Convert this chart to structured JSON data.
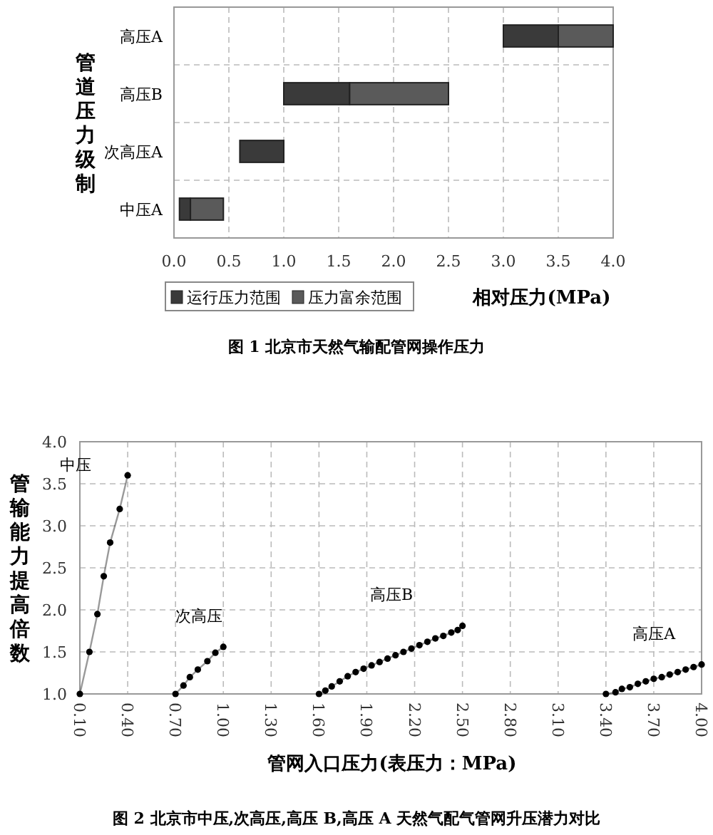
{
  "chart_data": [
    {
      "type": "bar",
      "orientation": "horizontal",
      "title": "图 1  北京市天然气输配管网操作压力",
      "xlabel": "相对压力(MPa)",
      "ylabel": "管道压力级制",
      "categories": [
        "高压A",
        "高压B",
        "次高压A",
        "中压A"
      ],
      "series": [
        {
          "name": "运行压力范围",
          "color": "#3a3a3a",
          "base": [
            3.0,
            1.0,
            0.6,
            0.05
          ],
          "values": [
            0.5,
            0.6,
            0.4,
            0.1
          ]
        },
        {
          "name": "压力富余范围",
          "color": "#5a5a5a",
          "base": [
            3.5,
            1.6,
            null,
            0.15
          ],
          "values": [
            0.5,
            0.9,
            null,
            0.3
          ]
        }
      ],
      "xlim": [
        0,
        4
      ],
      "xticks": [
        {
          "value": 0,
          "label": "0.0"
        },
        {
          "value": 0.5,
          "label": "0.5"
        },
        {
          "value": 1,
          "label": "1.0"
        },
        {
          "value": 1.5,
          "label": "1.5"
        },
        {
          "value": 2,
          "label": "2.0"
        },
        {
          "value": 2.5,
          "label": "2.5"
        },
        {
          "value": 3,
          "label": "3.0"
        },
        {
          "value": 3.5,
          "label": "3.5"
        },
        {
          "value": 4,
          "label": "4.0"
        }
      ],
      "grid": true,
      "legend": "bottom"
    },
    {
      "type": "line",
      "title": "图 2  北京市中压,次高压,高压 B,高压 A 天然气配气管网升压潜力对比",
      "xlabel": "管网入口压力(表压力：MPa)",
      "ylabel": "管输能力提高倍数",
      "series": [
        {
          "name": "中压",
          "color": "#000000",
          "x": [
            0.1,
            0.16,
            0.21,
            0.25,
            0.29,
            0.35,
            0.4
          ],
          "values": [
            1.0,
            1.5,
            1.95,
            2.4,
            2.8,
            3.2,
            3.6
          ]
        },
        {
          "name": "次高压",
          "color": "#000000",
          "x": [
            0.7,
            0.75,
            0.79,
            0.84,
            0.9,
            0.95,
            1.0
          ],
          "values": [
            1.0,
            1.1,
            1.2,
            1.29,
            1.39,
            1.49,
            1.56
          ]
        },
        {
          "name": "高压B",
          "color": "#000000",
          "x": [
            1.6,
            1.64,
            1.68,
            1.73,
            1.78,
            1.83,
            1.88,
            1.93,
            1.98,
            2.03,
            2.08,
            2.13,
            2.18,
            2.23,
            2.28,
            2.33,
            2.38,
            2.43,
            2.47,
            2.5
          ],
          "values": [
            1.0,
            1.04,
            1.09,
            1.15,
            1.21,
            1.26,
            1.3,
            1.34,
            1.38,
            1.42,
            1.46,
            1.5,
            1.54,
            1.58,
            1.62,
            1.66,
            1.69,
            1.73,
            1.76,
            1.81
          ]
        },
        {
          "name": "高压A",
          "color": "#000000",
          "x": [
            3.4,
            3.46,
            3.5,
            3.55,
            3.6,
            3.65,
            3.7,
            3.75,
            3.8,
            3.85,
            3.9,
            3.95,
            4.0
          ],
          "values": [
            1.0,
            1.02,
            1.06,
            1.08,
            1.12,
            1.15,
            1.18,
            1.2,
            1.23,
            1.26,
            1.29,
            1.32,
            1.35
          ]
        }
      ],
      "xlim": [
        0.1,
        4.0
      ],
      "xticks": [
        {
          "value": 0.1,
          "label": "0.10"
        },
        {
          "value": 0.4,
          "label": "0.40"
        },
        {
          "value": 0.7,
          "label": "0.70"
        },
        {
          "value": 1.0,
          "label": "1.00"
        },
        {
          "value": 1.3,
          "label": "1.30"
        },
        {
          "value": 1.6,
          "label": "1.60"
        },
        {
          "value": 1.9,
          "label": "1.90"
        },
        {
          "value": 2.2,
          "label": "2.20"
        },
        {
          "value": 2.5,
          "label": "2.50"
        },
        {
          "value": 2.8,
          "label": "2.80"
        },
        {
          "value": 3.1,
          "label": "3.10"
        },
        {
          "value": 3.4,
          "label": "3.40"
        },
        {
          "value": 3.7,
          "label": "3.70"
        },
        {
          "value": 4.0,
          "label": "4.00"
        }
      ],
      "ylim": [
        1,
        4
      ],
      "yticks": [
        {
          "value": 1,
          "label": "1.0"
        },
        {
          "value": 1.5,
          "label": "1.5"
        },
        {
          "value": 2,
          "label": "2.0"
        },
        {
          "value": 2.5,
          "label": "2.5"
        },
        {
          "value": 3,
          "label": "3.0"
        },
        {
          "value": 3.5,
          "label": "3.5"
        },
        {
          "value": 4,
          "label": "4.0"
        }
      ],
      "grid": true,
      "marker": "circle",
      "line_style": "solid"
    }
  ]
}
